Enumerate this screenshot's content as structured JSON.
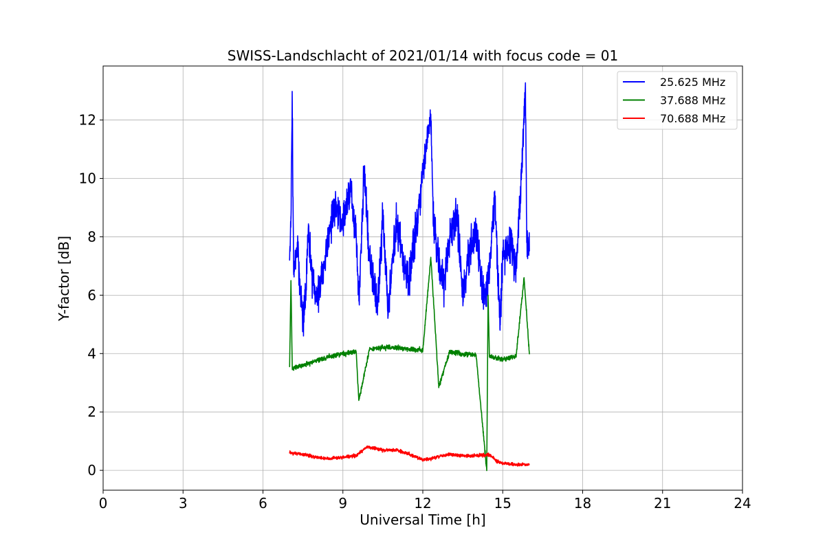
{
  "chart_data": {
    "type": "line",
    "title": "SWISS-Landschlacht of 2021/01/14 with focus code = 01",
    "xlabel": "Universal Time [h]",
    "ylabel": "Y-factor [dB]",
    "xlim": [
      0,
      24
    ],
    "ylim": [
      -0.68,
      13.85
    ],
    "xticks": [
      0,
      3,
      6,
      9,
      12,
      15,
      18,
      21,
      24
    ],
    "xtick_labels": [
      "0",
      "3",
      "6",
      "9",
      "12",
      "15",
      "18",
      "21",
      "24"
    ],
    "yticks": [
      0,
      2,
      4,
      6,
      8,
      10,
      12
    ],
    "ytick_labels": [
      "0",
      "2",
      "4",
      "6",
      "8",
      "10",
      "12"
    ],
    "grid": true,
    "legend_position": "top-right",
    "series": [
      {
        "name": "25.625 MHz",
        "color": "#0000ff",
        "x_range": [
          7.0,
          16.0
        ],
        "baseline": 7.6,
        "noise": 0.9,
        "points": [
          [
            7.0,
            7.2
          ],
          [
            7.05,
            8.7
          ],
          [
            7.1,
            12.6
          ],
          [
            7.15,
            6.8
          ],
          [
            7.3,
            7.6
          ],
          [
            7.45,
            5.6
          ],
          [
            7.5,
            5.0
          ],
          [
            7.6,
            6.0
          ],
          [
            7.7,
            8.3
          ],
          [
            7.8,
            7.0
          ],
          [
            8.0,
            5.8
          ],
          [
            8.2,
            6.6
          ],
          [
            8.5,
            8.2
          ],
          [
            8.7,
            9.2
          ],
          [
            9.0,
            8.4
          ],
          [
            9.3,
            9.7
          ],
          [
            9.5,
            8.0
          ],
          [
            9.6,
            5.8
          ],
          [
            9.8,
            10.4
          ],
          [
            10.0,
            7.2
          ],
          [
            10.3,
            5.6
          ],
          [
            10.5,
            8.8
          ],
          [
            10.7,
            5.3
          ],
          [
            11.0,
            8.6
          ],
          [
            11.3,
            7.0
          ],
          [
            11.5,
            6.6
          ],
          [
            12.0,
            10.2
          ],
          [
            12.3,
            12.2
          ],
          [
            12.4,
            8.6
          ],
          [
            12.6,
            7.0
          ],
          [
            12.8,
            6.4
          ],
          [
            13.0,
            7.8
          ],
          [
            13.3,
            8.8
          ],
          [
            13.5,
            6.0
          ],
          [
            13.8,
            7.6
          ],
          [
            14.0,
            8.2
          ],
          [
            14.3,
            5.8
          ],
          [
            14.5,
            6.8
          ],
          [
            14.7,
            9.4
          ],
          [
            14.9,
            4.8
          ],
          [
            15.0,
            7.4
          ],
          [
            15.3,
            7.8
          ],
          [
            15.5,
            6.8
          ],
          [
            15.7,
            10.0
          ],
          [
            15.85,
            13.2
          ],
          [
            15.9,
            7.8
          ],
          [
            16.0,
            7.5
          ]
        ]
      },
      {
        "name": "37.688 MHz",
        "color": "#008000",
        "x_range": [
          7.0,
          16.0
        ],
        "baseline": 3.55,
        "noise": 0.12,
        "points": [
          [
            7.0,
            3.55
          ],
          [
            7.05,
            6.5
          ],
          [
            7.1,
            3.5
          ],
          [
            7.5,
            3.6
          ],
          [
            8.0,
            3.75
          ],
          [
            8.5,
            3.9
          ],
          [
            9.0,
            4.0
          ],
          [
            9.5,
            4.05
          ],
          [
            9.6,
            2.4
          ],
          [
            10.0,
            4.15
          ],
          [
            10.5,
            4.2
          ],
          [
            11.0,
            4.2
          ],
          [
            11.5,
            4.15
          ],
          [
            12.0,
            4.1
          ],
          [
            12.3,
            7.3
          ],
          [
            12.6,
            2.85
          ],
          [
            13.0,
            4.05
          ],
          [
            13.5,
            4.0
          ],
          [
            14.0,
            3.95
          ],
          [
            14.4,
            0.0
          ],
          [
            14.45,
            6.0
          ],
          [
            14.5,
            3.9
          ],
          [
            15.0,
            3.8
          ],
          [
            15.5,
            3.9
          ],
          [
            15.8,
            6.6
          ],
          [
            16.0,
            4.0
          ]
        ]
      },
      {
        "name": "70.688 MHz",
        "color": "#ff0000",
        "x_range": [
          7.0,
          16.0
        ],
        "baseline": 0.6,
        "noise": 0.08,
        "points": [
          [
            7.0,
            0.6
          ],
          [
            7.5,
            0.55
          ],
          [
            8.0,
            0.45
          ],
          [
            8.5,
            0.4
          ],
          [
            9.0,
            0.45
          ],
          [
            9.5,
            0.5
          ],
          [
            9.9,
            0.8
          ],
          [
            10.5,
            0.7
          ],
          [
            11.0,
            0.7
          ],
          [
            11.5,
            0.55
          ],
          [
            12.0,
            0.35
          ],
          [
            12.5,
            0.45
          ],
          [
            13.0,
            0.55
          ],
          [
            13.5,
            0.5
          ],
          [
            14.0,
            0.5
          ],
          [
            14.5,
            0.55
          ],
          [
            14.8,
            0.3
          ],
          [
            15.0,
            0.25
          ],
          [
            15.5,
            0.2
          ],
          [
            16.0,
            0.2
          ]
        ]
      }
    ]
  }
}
